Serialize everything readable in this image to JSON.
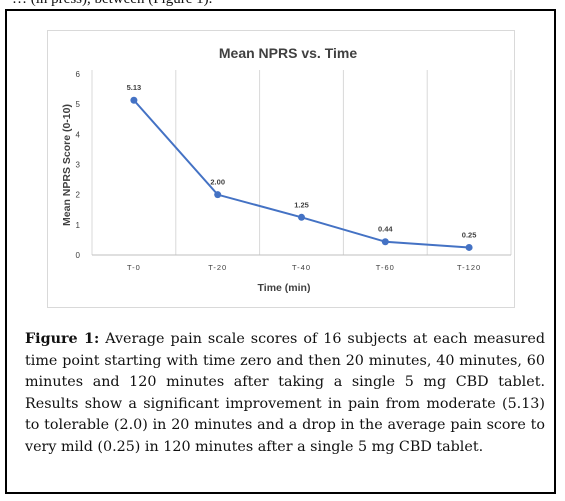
{
  "page": {
    "top_fragment": "… (in press), between (Figure 1)."
  },
  "figure": {
    "caption_label": "Figure 1:",
    "caption_text": "Average pain scale scores of 16 subjects at each measured time point starting with time zero and then 20 minutes, 40 minutes, 60 minutes and 120 minutes after taking a single 5 mg CBD tablet. Results show a significant improvement in pain from moderate (5.13) to tolerable (2.0) in 20 minutes and a drop in the average pain score to very mild (0.25) in 120 minutes after a single 5 mg CBD tablet."
  },
  "chart_data": {
    "type": "line",
    "title": "Mean NPRS vs. Time",
    "xlabel": "Time (min)",
    "ylabel": "Mean NPRS Score (0-10)",
    "categories": [
      "T-0",
      "T-20",
      "T-40",
      "T-60",
      "T-120"
    ],
    "values": [
      5.13,
      2.0,
      1.25,
      0.44,
      0.25
    ],
    "data_labels": [
      "5.13",
      "2.00",
      "1.25",
      "0.44",
      "0.25"
    ],
    "ylim": [
      0,
      6
    ],
    "yticks": [
      "0",
      "1",
      "2",
      "3",
      "4",
      "5",
      "6"
    ],
    "grid": "vertical category separators",
    "legend": "none",
    "colors": {
      "line": "#4472c4",
      "marker": "#4472c4",
      "title": "#404040",
      "axis_text": "#404040",
      "grid": "#d9d9d9"
    }
  }
}
